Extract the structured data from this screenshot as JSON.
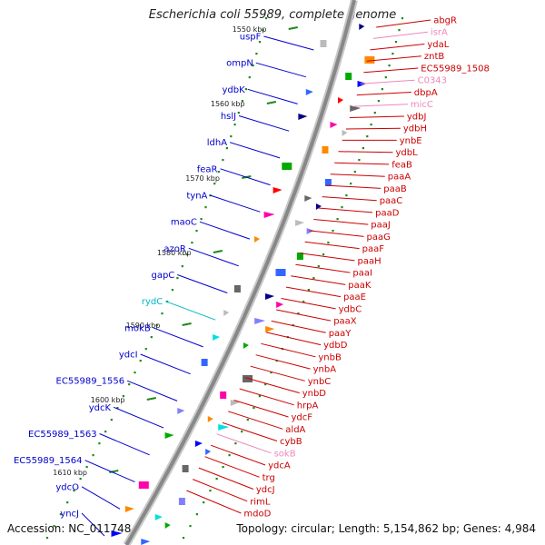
{
  "title": "Escherichia coli 55989, complete genome",
  "accession": "Accession: NC_011748",
  "topology": "Topology: circular; Length: 5,154,862 bp; Genes: 4,984",
  "colors": {
    "left_label": "#0000cc",
    "right_label": "#cc0000",
    "rna_label_cyan": "#00b8c8",
    "rna_label_pink": "#ee88bb",
    "backbone": "#888888",
    "scale_dots": "#1a8a1a"
  },
  "ruler": [
    "1550 kbp",
    "1560 kbp",
    "1570 kbp",
    "1580 kbp",
    "1590 kbp",
    "1600 kbp",
    "1610 kbp"
  ],
  "left_genes": [
    {
      "label": "uspF",
      "kind": "cds"
    },
    {
      "label": "ompN",
      "kind": "cds"
    },
    {
      "label": "ydbK",
      "kind": "cds"
    },
    {
      "label": "hslJ",
      "kind": "cds"
    },
    {
      "label": "ldhA",
      "kind": "cds"
    },
    {
      "label": "feaR",
      "kind": "cds"
    },
    {
      "label": "tynA",
      "kind": "cds"
    },
    {
      "label": "maoC",
      "kind": "cds"
    },
    {
      "label": "azoR",
      "kind": "cds"
    },
    {
      "label": "gapC",
      "kind": "cds"
    },
    {
      "label": "rydC",
      "kind": "rna"
    },
    {
      "label": "mokB",
      "kind": "cds"
    },
    {
      "label": "ydcI",
      "kind": "cds"
    },
    {
      "label": "EC55989_1556",
      "kind": "cds"
    },
    {
      "label": "ydcK",
      "kind": "cds"
    },
    {
      "label": "EC55989_1563",
      "kind": "cds"
    },
    {
      "label": "EC55989_1564",
      "kind": "cds"
    },
    {
      "label": "ydcO",
      "kind": "cds"
    },
    {
      "label": "yncJ",
      "kind": "cds"
    }
  ],
  "right_genes": [
    {
      "label": "abgR",
      "kind": "cds"
    },
    {
      "label": "isrA",
      "kind": "rna"
    },
    {
      "label": "ydaL",
      "kind": "cds"
    },
    {
      "label": "zntB",
      "kind": "cds"
    },
    {
      "label": "EC55989_1508",
      "kind": "cds"
    },
    {
      "label": "C0343",
      "kind": "rna"
    },
    {
      "label": "dbpA",
      "kind": "cds"
    },
    {
      "label": "micC",
      "kind": "rna"
    },
    {
      "label": "ydbJ",
      "kind": "cds"
    },
    {
      "label": "ydbH",
      "kind": "cds"
    },
    {
      "label": "ynbE",
      "kind": "cds"
    },
    {
      "label": "ydbL",
      "kind": "cds"
    },
    {
      "label": "feaB",
      "kind": "cds"
    },
    {
      "label": "paaA",
      "kind": "cds"
    },
    {
      "label": "paaB",
      "kind": "cds"
    },
    {
      "label": "paaC",
      "kind": "cds"
    },
    {
      "label": "paaD",
      "kind": "cds"
    },
    {
      "label": "paaJ",
      "kind": "cds"
    },
    {
      "label": "paaG",
      "kind": "cds"
    },
    {
      "label": "paaF",
      "kind": "cds"
    },
    {
      "label": "paaH",
      "kind": "cds"
    },
    {
      "label": "paaI",
      "kind": "cds"
    },
    {
      "label": "paaK",
      "kind": "cds"
    },
    {
      "label": "paaE",
      "kind": "cds"
    },
    {
      "label": "ydbC",
      "kind": "cds"
    },
    {
      "label": "paaX",
      "kind": "cds"
    },
    {
      "label": "paaY",
      "kind": "cds"
    },
    {
      "label": "ydbD",
      "kind": "cds"
    },
    {
      "label": "ynbB",
      "kind": "cds"
    },
    {
      "label": "ynbA",
      "kind": "cds"
    },
    {
      "label": "ynbC",
      "kind": "cds"
    },
    {
      "label": "ynbD",
      "kind": "cds"
    },
    {
      "label": "hrpA",
      "kind": "cds"
    },
    {
      "label": "ydcF",
      "kind": "cds"
    },
    {
      "label": "aldA",
      "kind": "cds"
    },
    {
      "label": "cybB",
      "kind": "cds"
    },
    {
      "label": "sokB",
      "kind": "rna"
    },
    {
      "label": "ydcA",
      "kind": "cds"
    },
    {
      "label": "trg",
      "kind": "cds"
    },
    {
      "label": "ydcJ",
      "kind": "cds"
    },
    {
      "label": "rimL",
      "kind": "cds"
    },
    {
      "label": "mdoD",
      "kind": "cds"
    }
  ]
}
